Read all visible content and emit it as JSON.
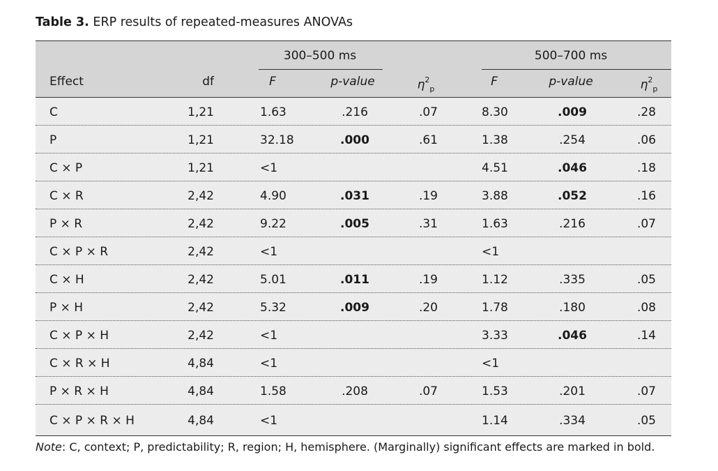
{
  "caption": {
    "label": "Table 3.",
    "text": "ERP results of repeated-measures ANOVAs"
  },
  "header": {
    "group1": "300–500 ms",
    "group2": "500–700 ms",
    "effect": "Effect",
    "df": "df",
    "F": "F",
    "pvalue": "p-value",
    "eta_symbol": "η",
    "eta_sup": "2",
    "eta_sub": "p"
  },
  "rows": [
    {
      "effect": "C",
      "df": "1,21",
      "F1": "1.63",
      "p1": ".216",
      "p1_bold": false,
      "eta1": ".07",
      "F2": "8.30",
      "p2": ".009",
      "p2_bold": true,
      "eta2": ".28"
    },
    {
      "effect": "P",
      "df": "1,21",
      "F1": "32.18",
      "p1": ".000",
      "p1_bold": true,
      "eta1": ".61",
      "F2": "1.38",
      "p2": ".254",
      "p2_bold": false,
      "eta2": ".06"
    },
    {
      "effect": "C × P",
      "df": "1,21",
      "F1": "<1",
      "p1": "",
      "p1_bold": false,
      "eta1": "",
      "F2": "4.51",
      "p2": ".046",
      "p2_bold": true,
      "eta2": ".18"
    },
    {
      "effect": "C × R",
      "df": "2,42",
      "F1": "4.90",
      "p1": ".031",
      "p1_bold": true,
      "eta1": ".19",
      "F2": "3.88",
      "p2": ".052",
      "p2_bold": true,
      "eta2": ".16"
    },
    {
      "effect": "P × R",
      "df": "2,42",
      "F1": "9.22",
      "p1": ".005",
      "p1_bold": true,
      "eta1": ".31",
      "F2": "1.63",
      "p2": ".216",
      "p2_bold": false,
      "eta2": ".07"
    },
    {
      "effect": "C × P × R",
      "df": "2,42",
      "F1": "<1",
      "p1": "",
      "p1_bold": false,
      "eta1": "",
      "F2": "<1",
      "p2": "",
      "p2_bold": false,
      "eta2": ""
    },
    {
      "effect": "C × H",
      "df": "2,42",
      "F1": "5.01",
      "p1": ".011",
      "p1_bold": true,
      "eta1": ".19",
      "F2": "1.12",
      "p2": ".335",
      "p2_bold": false,
      "eta2": ".05"
    },
    {
      "effect": "P × H",
      "df": "2,42",
      "F1": "5.32",
      "p1": ".009",
      "p1_bold": true,
      "eta1": ".20",
      "F2": "1.78",
      "p2": ".180",
      "p2_bold": false,
      "eta2": ".08"
    },
    {
      "effect": "C × P × H",
      "df": "2,42",
      "F1": "<1",
      "p1": "",
      "p1_bold": false,
      "eta1": "",
      "F2": "3.33",
      "p2": ".046",
      "p2_bold": true,
      "eta2": ".14"
    },
    {
      "effect": "C × R × H",
      "df": "4,84",
      "F1": "<1",
      "p1": "",
      "p1_bold": false,
      "eta1": "",
      "F2": "<1",
      "p2": "",
      "p2_bold": false,
      "eta2": ""
    },
    {
      "effect": "P × R × H",
      "df": "4,84",
      "F1": "1.58",
      "p1": ".208",
      "p1_bold": false,
      "eta1": ".07",
      "F2": "1.53",
      "p2": ".201",
      "p2_bold": false,
      "eta2": ".07"
    },
    {
      "effect": "C × P × R × H",
      "df": "4,84",
      "F1": "<1",
      "p1": "",
      "p1_bold": false,
      "eta1": "",
      "F2": "1.14",
      "p2": ".334",
      "p2_bold": false,
      "eta2": ".05"
    }
  ],
  "note": {
    "label": "Note",
    "text": ": C, context; P, predictability; R, region; H, hemisphere. (Marginally) significant effects are marked in bold."
  }
}
